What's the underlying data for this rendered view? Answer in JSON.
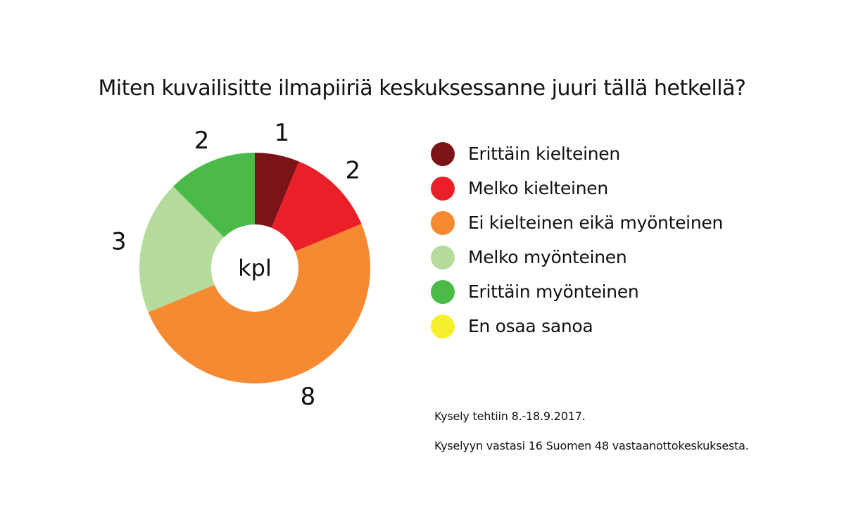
{
  "chart_data": {
    "type": "pie",
    "variant": "donut",
    "title": "Miten kuvailisitte ilmapiiriä keskuksessanne juuri tällä hetkellä?",
    "center_label": "kpl",
    "series": [
      {
        "name": "Erittäin kielteinen",
        "value": 1,
        "label": "1",
        "color": "#7b1418"
      },
      {
        "name": "Melko kielteinen",
        "value": 2,
        "label": "2",
        "color": "#ea1f27"
      },
      {
        "name": "Ei kielteinen eikä myönteinen",
        "value": 8,
        "label": "8",
        "color": "#f58a33"
      },
      {
        "name": "Melko myönteinen",
        "value": 3,
        "label": "3",
        "color": "#b5dc9c"
      },
      {
        "name": "Erittäin myönteinen",
        "value": 2,
        "label": "2",
        "color": "#4cba48"
      },
      {
        "name": "En osaa sanoa",
        "value": 0,
        "label": "",
        "color": "#f5ef2c"
      }
    ],
    "legend_position": "right"
  },
  "notes": [
    "Kysely tehtiin 8.-18.9.2017.",
    "Kyselyyn vastasi 16 Suomen 48 vastaanottokeskuksesta."
  ]
}
